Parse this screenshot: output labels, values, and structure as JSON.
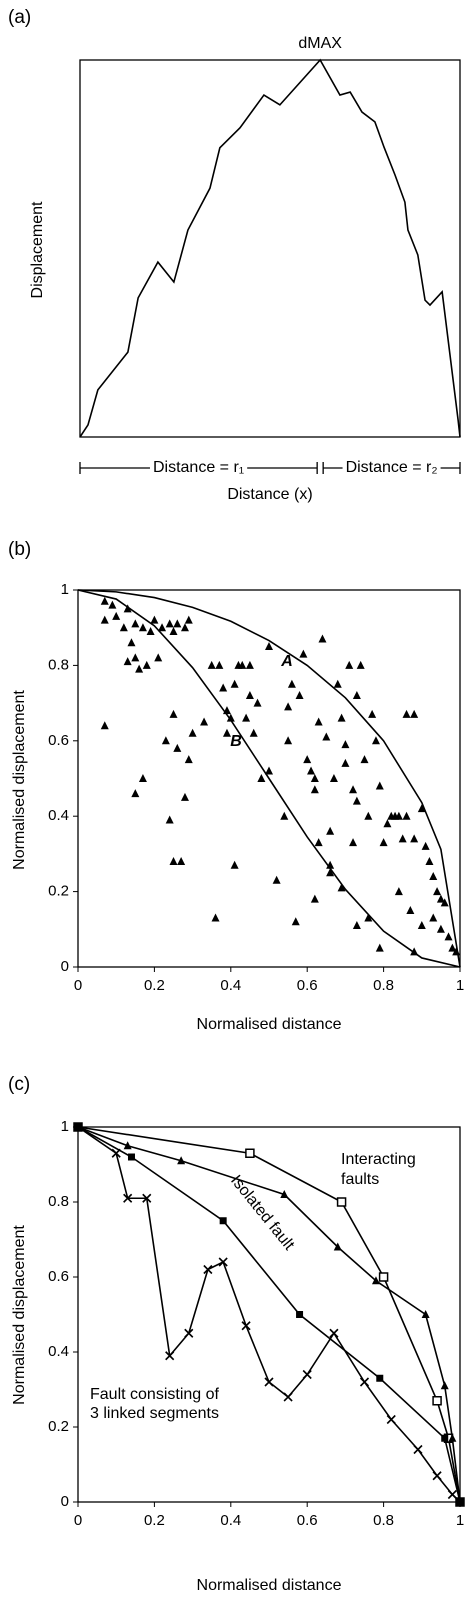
{
  "chart_data": [
    {
      "type": "line",
      "panel": "(a)",
      "ylabel": "Displacement",
      "xlabel": "Distance (x)",
      "annotations": [
        "dMAX"
      ],
      "spans": [
        "Distance = r₁",
        "Distance = r₂"
      ],
      "xlim": [
        0,
        1
      ],
      "ylim": [
        0,
        1
      ],
      "series": [
        {
          "color": "#000000",
          "line": true,
          "marker": "none",
          "x": [
            0,
            0.021,
            0.047,
            0.126,
            0.153,
            0.205,
            0.247,
            0.284,
            0.342,
            0.368,
            0.421,
            0.484,
            0.526,
            0.632,
            0.684,
            0.711,
            0.742,
            0.776,
            0.8,
            0.829,
            0.855,
            0.863,
            0.889,
            0.908,
            0.921,
            0.953,
            0.995,
            1
          ],
          "values": [
            0,
            0.032,
            0.125,
            0.225,
            0.369,
            0.464,
            0.411,
            0.549,
            0.66,
            0.767,
            0.82,
            0.907,
            0.881,
            1,
            0.907,
            0.915,
            0.862,
            0.836,
            0.769,
            0.695,
            0.623,
            0.549,
            0.483,
            0.363,
            0.35,
            0.385,
            0.045,
            0
          ]
        }
      ]
    },
    {
      "type": "scatter",
      "panel": "(b)",
      "ylabel": "Normalised displacement",
      "xlabel": "Normalised distance",
      "xlim": [
        0,
        1
      ],
      "ylim": [
        0,
        1
      ],
      "xticks": [
        0,
        0.2,
        0.4,
        0.6,
        0.8,
        1
      ],
      "yticks": [
        0,
        0.2,
        0.4,
        0.6,
        0.8,
        1
      ],
      "series": [
        {
          "color": "#000000",
          "line": false,
          "marker": "triangle",
          "x": [
            0.07,
            0.09,
            0.07,
            0.1,
            0.12,
            0.13,
            0.15,
            0.17,
            0.19,
            0.2,
            0.22,
            0.24,
            0.25,
            0.26,
            0.28,
            0.29,
            0.13,
            0.15,
            0.16,
            0.14,
            0.18,
            0.21,
            0.07,
            0.15,
            0.17,
            0.24,
            0.25,
            0.27,
            0.28,
            0.23,
            0.25,
            0.26,
            0.29,
            0.3,
            0.33,
            0.35,
            0.37,
            0.38,
            0.39,
            0.4,
            0.41,
            0.42,
            0.43,
            0.44,
            0.45,
            0.46,
            0.47,
            0.36,
            0.39,
            0.41,
            0.45,
            0.48,
            0.5,
            0.5,
            0.54,
            0.55,
            0.55,
            0.56,
            0.58,
            0.59,
            0.6,
            0.61,
            0.62,
            0.62,
            0.63,
            0.64,
            0.66,
            0.65,
            0.67,
            0.68,
            0.69,
            0.7,
            0.71,
            0.7,
            0.72,
            0.73,
            0.74,
            0.75,
            0.73,
            0.76,
            0.77,
            0.78,
            0.79,
            0.8,
            0.81,
            0.82,
            0.83,
            0.84,
            0.85,
            0.86,
            0.86,
            0.88,
            0.88,
            0.9,
            0.91,
            0.92,
            0.93,
            0.94,
            0.95,
            0.96,
            0.63,
            0.66,
            0.69,
            0.72,
            0.73,
            0.76,
            0.79,
            0.84,
            0.87,
            0.88,
            0.9,
            0.93,
            0.95,
            0.97,
            0.98,
            0.99,
            0.62,
            0.66,
            0.57,
            0.52
          ],
          "values": [
            0.97,
            0.96,
            0.92,
            0.93,
            0.9,
            0.95,
            0.91,
            0.9,
            0.89,
            0.92,
            0.9,
            0.91,
            0.89,
            0.91,
            0.9,
            0.92,
            0.81,
            0.82,
            0.79,
            0.86,
            0.8,
            0.82,
            0.64,
            0.46,
            0.5,
            0.39,
            0.28,
            0.28,
            0.45,
            0.6,
            0.67,
            0.58,
            0.55,
            0.62,
            0.65,
            0.8,
            0.8,
            0.74,
            0.68,
            0.66,
            0.75,
            0.8,
            0.8,
            0.66,
            0.72,
            0.62,
            0.7,
            0.13,
            0.62,
            0.27,
            0.8,
            0.5,
            0.52,
            0.85,
            0.4,
            0.6,
            0.69,
            0.75,
            0.72,
            0.83,
            0.55,
            0.52,
            0.5,
            0.47,
            0.65,
            0.87,
            0.36,
            0.61,
            0.5,
            0.75,
            0.66,
            0.59,
            0.8,
            0.54,
            0.47,
            0.44,
            0.8,
            0.55,
            0.72,
            0.4,
            0.67,
            0.6,
            0.48,
            0.33,
            0.38,
            0.4,
            0.4,
            0.4,
            0.34,
            0.67,
            0.4,
            0.34,
            0.67,
            0.42,
            0.32,
            0.28,
            0.24,
            0.2,
            0.18,
            0.17,
            0.33,
            0.25,
            0.21,
            0.33,
            0.11,
            0.13,
            0.05,
            0.2,
            0.15,
            0.04,
            0.11,
            0.13,
            0.1,
            0.08,
            0.05,
            0.04,
            0.18,
            0.27,
            0.12,
            0.23
          ]
        },
        {
          "name": "A",
          "color": "#000000",
          "line": true,
          "marker": "none",
          "x": [
            0,
            0.1,
            0.2,
            0.3,
            0.4,
            0.5,
            0.6,
            0.7,
            0.8,
            0.9,
            0.95,
            1
          ],
          "values": [
            1,
            0.995,
            0.98,
            0.954,
            0.917,
            0.866,
            0.8,
            0.714,
            0.6,
            0.436,
            0.312,
            0
          ]
        },
        {
          "name": "B",
          "color": "#000000",
          "line": true,
          "marker": "none",
          "x": [
            0,
            0.1,
            0.2,
            0.3,
            0.4,
            0.5,
            0.6,
            0.7,
            0.8,
            0.9,
            1
          ],
          "values": [
            1,
            0.976,
            0.905,
            0.794,
            0.655,
            0.5,
            0.345,
            0.206,
            0.095,
            0.024,
            0
          ]
        }
      ]
    },
    {
      "type": "line",
      "panel": "(c)",
      "ylabel": "Normalised displacement",
      "xlabel": "Normalised distance",
      "xlim": [
        0,
        1
      ],
      "ylim": [
        0,
        1
      ],
      "xticks": [
        0,
        0.2,
        0.4,
        0.6,
        0.8,
        1
      ],
      "yticks": [
        0,
        0.2,
        0.4,
        0.6,
        0.8,
        1
      ],
      "annotations": [
        "Interacting",
        "faults",
        "Isolated fault",
        "Fault consisting of",
        "3 linked segments"
      ],
      "series": [
        {
          "color": "#000000",
          "line": true,
          "marker": "open-square",
          "x": [
            0,
            0.45,
            0.69,
            0.8,
            0.94,
            0.97,
            1
          ],
          "values": [
            1,
            0.93,
            0.8,
            0.6,
            0.27,
            0.17,
            0
          ]
        },
        {
          "color": "#000000",
          "line": true,
          "marker": "triangle",
          "x": [
            0,
            0.13,
            0.27,
            0.54,
            0.68,
            0.78,
            0.91,
            0.96,
            0.98,
            1
          ],
          "values": [
            1,
            0.95,
            0.91,
            0.82,
            0.68,
            0.59,
            0.5,
            0.31,
            0.17,
            0
          ]
        },
        {
          "color": "#000000",
          "line": true,
          "marker": "filled-square",
          "x": [
            0,
            0.14,
            0.38,
            0.58,
            0.79,
            0.96,
            1
          ],
          "values": [
            1,
            0.92,
            0.75,
            0.5,
            0.33,
            0.17,
            0
          ]
        },
        {
          "color": "#000000",
          "line": true,
          "marker": "cross",
          "x": [
            0,
            0.1,
            0.13,
            0.18,
            0.24,
            0.29,
            0.34,
            0.38,
            0.44,
            0.5,
            0.55,
            0.6,
            0.67,
            0.75,
            0.82,
            0.89,
            0.94,
            0.98,
            1
          ],
          "values": [
            1,
            0.93,
            0.81,
            0.81,
            0.39,
            0.45,
            0.62,
            0.64,
            0.47,
            0.32,
            0.28,
            0.34,
            0.45,
            0.32,
            0.22,
            0.14,
            0.07,
            0.02,
            0
          ]
        }
      ]
    }
  ]
}
